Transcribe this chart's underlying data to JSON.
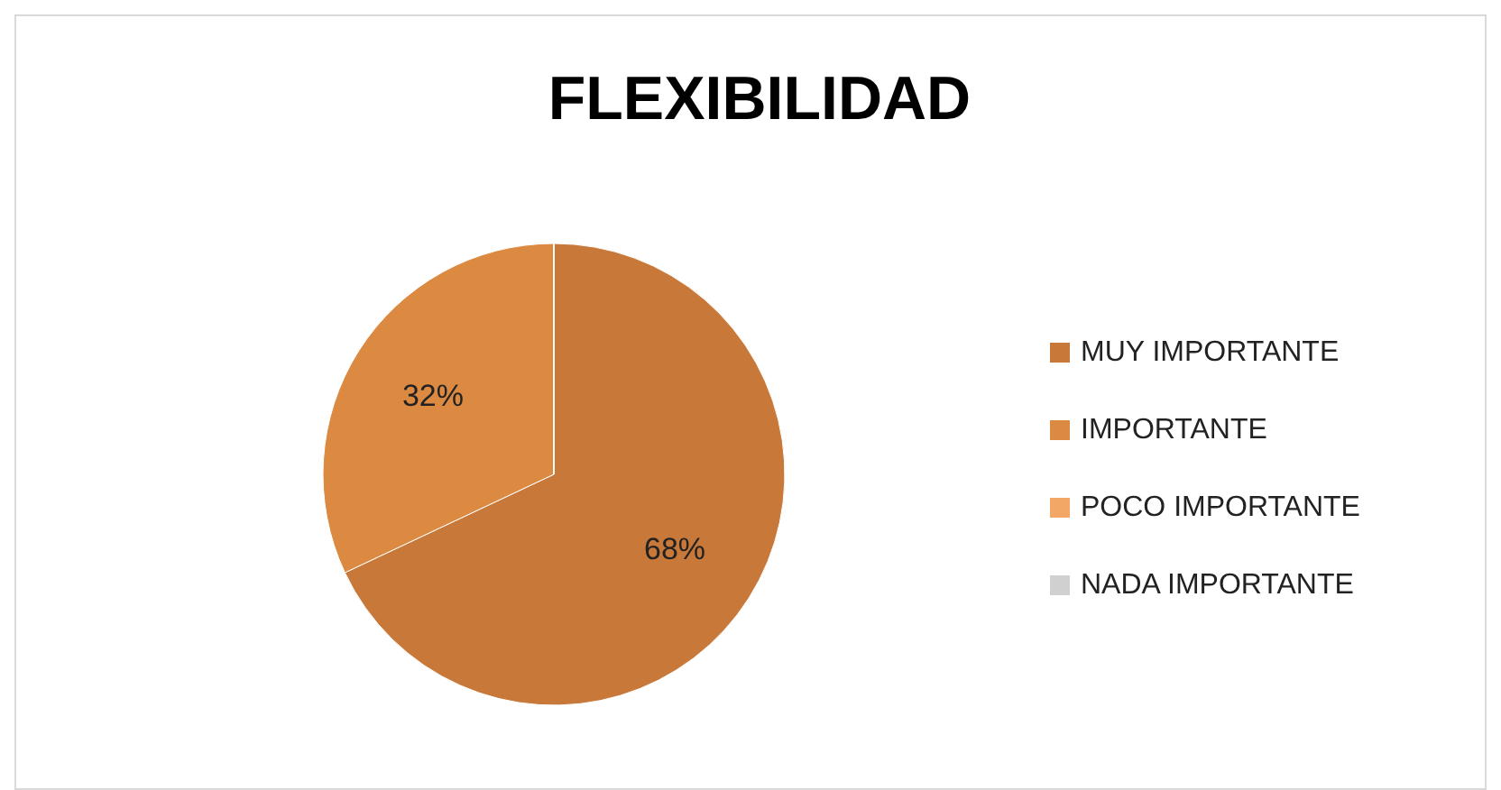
{
  "chart_data": {
    "type": "pie",
    "title": "FLEXIBILIDAD",
    "categories": [
      "MUY IMPORTANTE",
      "IMPORTANTE",
      "POCO IMPORTANTE",
      "NADA IMPORTANTE"
    ],
    "values": [
      68,
      32,
      0,
      0
    ],
    "colors": [
      "#c8793a",
      "#dc8a42",
      "#f2a766",
      "#d0d0d0"
    ],
    "value_labels": [
      "68%",
      "32%",
      null,
      null
    ],
    "legend": "right"
  }
}
